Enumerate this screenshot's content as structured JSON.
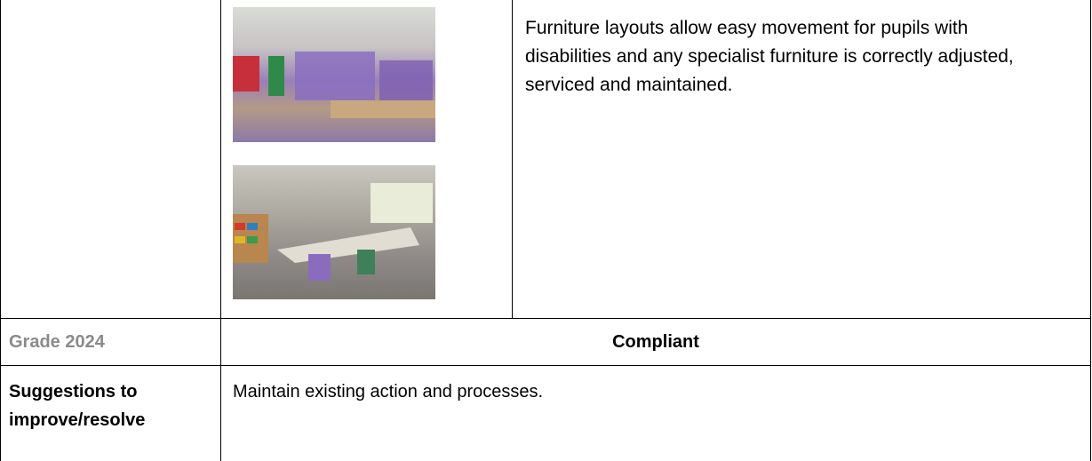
{
  "criteria_row": {
    "text": "Furniture layouts allow easy movement for pupils with disabilities and any specialist furniture is correctly adjusted, serviced and maintained."
  },
  "grade_row": {
    "label": "Grade 2024",
    "value": "Compliant"
  },
  "suggestions_row": {
    "label": "Suggestions to improve/resolve",
    "text": "Maintain existing action and processes."
  }
}
